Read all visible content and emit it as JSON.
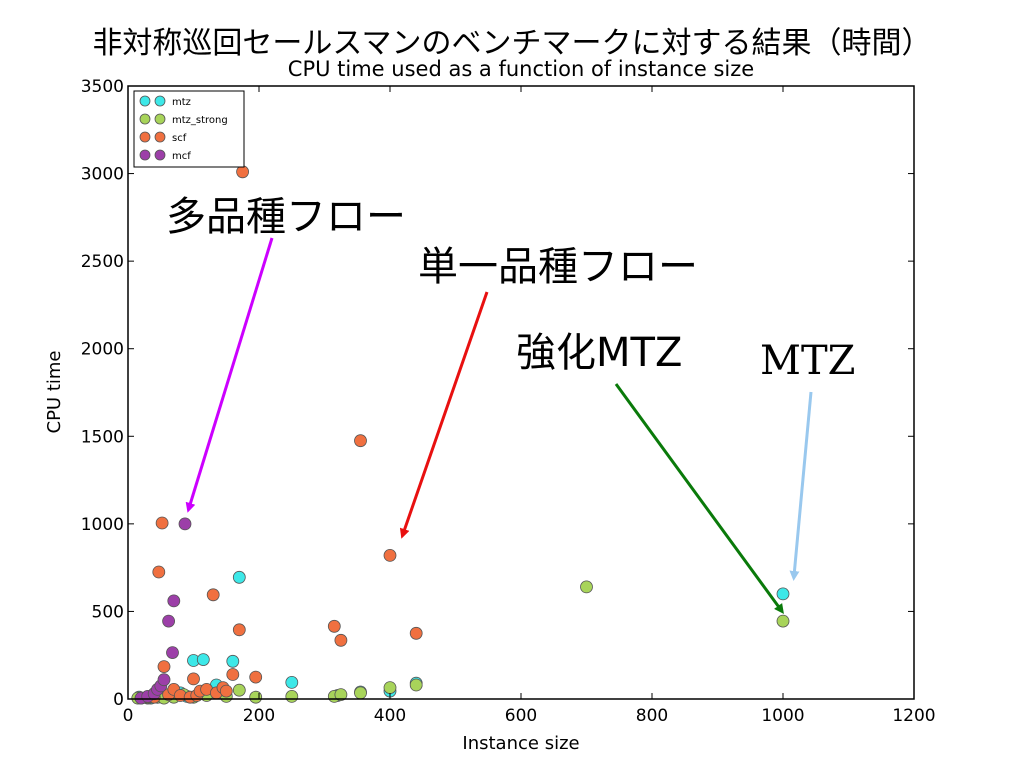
{
  "slide_title": "非対称巡回セールスマンのベンチマークに対する結果（時間）",
  "annotations": [
    {
      "id": "mcf",
      "text": "多品種フロー",
      "color": "#cc00ff"
    },
    {
      "id": "scf",
      "text": "単一品種フロー",
      "color": "#e81010"
    },
    {
      "id": "mtz_strong",
      "text": "強化MTZ",
      "color": "#0a7a0a"
    },
    {
      "id": "mtz",
      "text": "MTZ",
      "color": "#99c8ee"
    }
  ],
  "chart_data": {
    "type": "scatter",
    "title": "CPU time used as a function of instance size",
    "xlabel": "Instance size",
    "ylabel": "CPU time",
    "xlim": [
      0,
      1200
    ],
    "ylim": [
      0,
      3500
    ],
    "xticks": [
      0,
      200,
      400,
      600,
      800,
      1000,
      1200
    ],
    "yticks": [
      0,
      500,
      1000,
      1500,
      2000,
      2500,
      3000,
      3500
    ],
    "grid": false,
    "legend_position": "top-left",
    "series": [
      {
        "name": "mtz",
        "color": "#3de8e8",
        "points": [
          [
            17,
            10
          ],
          [
            35,
            5
          ],
          [
            45,
            10
          ],
          [
            55,
            15
          ],
          [
            65,
            20
          ],
          [
            80,
            35
          ],
          [
            90,
            15
          ],
          [
            100,
            220
          ],
          [
            115,
            225
          ],
          [
            135,
            80
          ],
          [
            160,
            215
          ],
          [
            170,
            695
          ],
          [
            250,
            95
          ],
          [
            320,
            20
          ],
          [
            355,
            40
          ],
          [
            400,
            45
          ],
          [
            440,
            90
          ],
          [
            1000,
            600
          ]
        ]
      },
      {
        "name": "mtz_strong",
        "color": "#a8d45a",
        "points": [
          [
            15,
            5
          ],
          [
            30,
            5
          ],
          [
            45,
            10
          ],
          [
            55,
            5
          ],
          [
            70,
            10
          ],
          [
            85,
            25
          ],
          [
            100,
            10
          ],
          [
            120,
            20
          ],
          [
            150,
            15
          ],
          [
            170,
            50
          ],
          [
            195,
            10
          ],
          [
            250,
            15
          ],
          [
            315,
            15
          ],
          [
            325,
            25
          ],
          [
            355,
            35
          ],
          [
            400,
            65
          ],
          [
            440,
            80
          ],
          [
            700,
            640
          ],
          [
            1000,
            445
          ]
        ]
      },
      {
        "name": "scf",
        "color": "#f07040",
        "points": [
          [
            20,
            5
          ],
          [
            30,
            10
          ],
          [
            40,
            10
          ],
          [
            47,
            725
          ],
          [
            52,
            1005
          ],
          [
            55,
            185
          ],
          [
            62,
            25
          ],
          [
            70,
            55
          ],
          [
            80,
            20
          ],
          [
            95,
            10
          ],
          [
            100,
            115
          ],
          [
            105,
            20
          ],
          [
            110,
            45
          ],
          [
            120,
            55
          ],
          [
            130,
            595
          ],
          [
            135,
            35
          ],
          [
            145,
            65
          ],
          [
            150,
            45
          ],
          [
            160,
            140
          ],
          [
            170,
            395
          ],
          [
            175,
            3010
          ],
          [
            195,
            125
          ],
          [
            315,
            415
          ],
          [
            325,
            335
          ],
          [
            355,
            1475
          ],
          [
            400,
            820
          ],
          [
            440,
            375
          ]
        ]
      },
      {
        "name": "mcf",
        "color": "#9c3fa8",
        "points": [
          [
            20,
            5
          ],
          [
            30,
            15
          ],
          [
            40,
            30
          ],
          [
            45,
            55
          ],
          [
            50,
            75
          ],
          [
            55,
            110
          ],
          [
            62,
            445
          ],
          [
            68,
            265
          ],
          [
            70,
            560
          ],
          [
            87,
            1000
          ]
        ]
      }
    ]
  }
}
